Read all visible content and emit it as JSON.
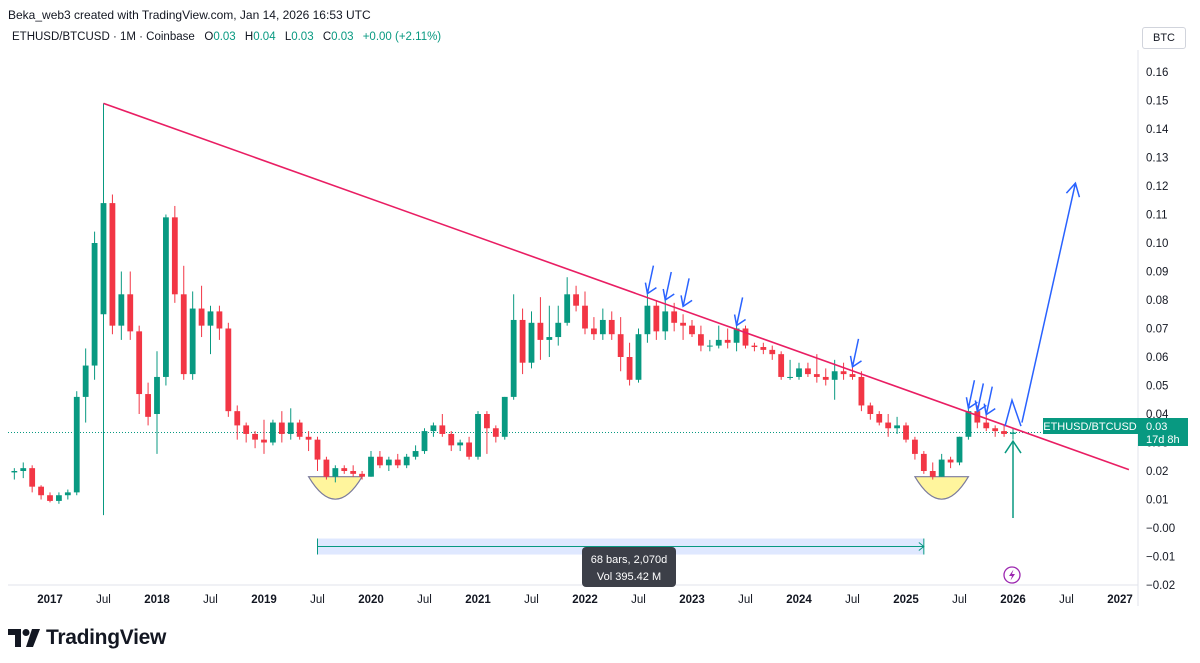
{
  "header": {
    "attribution": "Beka_web3 created with TradingView.com, Jan 14, 2026 16:53 UTC"
  },
  "legend": {
    "symbol": "ETHUSD/BTCUSD · 1M · Coinbase",
    "open_key": "O",
    "open": "0.03",
    "high_key": "H",
    "high": "0.04",
    "low_key": "L",
    "low": "0.03",
    "close_key": "C",
    "close": "0.03",
    "change": "+0.00 (+2.11%)"
  },
  "currency_button": "BTC",
  "footer": {
    "brand": "TradingView"
  },
  "price_label": {
    "name": "ETHUSD/BTCUSD",
    "value": "0.03",
    "countdown": "17d 8h"
  },
  "range_tooltip": {
    "bars": "68 bars, 2,070d",
    "volume": "Vol 395.42 M"
  },
  "colors": {
    "up": "#089981",
    "down": "#f23645",
    "trendline": "#e91e63",
    "arrow": "#2962ff",
    "range": "#2962ff",
    "highlight": "#fff59d"
  },
  "chart_data": {
    "type": "candlestick",
    "interval": "1M",
    "ylim": [
      -0.025,
      0.17
    ],
    "yticks": [
      "0.16",
      "0.15",
      "0.14",
      "0.13",
      "0.12",
      "0.11",
      "0.10",
      "0.09",
      "0.08",
      "0.07",
      "0.06",
      "0.05",
      "0.04",
      "0.03",
      "0.02",
      "0.01",
      "−0.00",
      "−0.01",
      "−0.02"
    ],
    "xticks": [
      {
        "label": "2017",
        "year": true,
        "t": 2017.0
      },
      {
        "label": "Jul",
        "year": false,
        "t": 2017.5
      },
      {
        "label": "2018",
        "year": true,
        "t": 2018.0
      },
      {
        "label": "Jul",
        "year": false,
        "t": 2018.5
      },
      {
        "label": "2019",
        "year": true,
        "t": 2019.0
      },
      {
        "label": "Jul",
        "year": false,
        "t": 2019.5
      },
      {
        "label": "2020",
        "year": true,
        "t": 2020.0
      },
      {
        "label": "Jul",
        "year": false,
        "t": 2020.5
      },
      {
        "label": "2021",
        "year": true,
        "t": 2021.0
      },
      {
        "label": "Jul",
        "year": false,
        "t": 2021.5
      },
      {
        "label": "2022",
        "year": true,
        "t": 2022.0
      },
      {
        "label": "Jul",
        "year": false,
        "t": 2022.5
      },
      {
        "label": "2023",
        "year": true,
        "t": 2023.0
      },
      {
        "label": "Jul",
        "year": false,
        "t": 2023.5
      },
      {
        "label": "2024",
        "year": true,
        "t": 2024.0
      },
      {
        "label": "Jul",
        "year": false,
        "t": 2024.5
      },
      {
        "label": "2025",
        "year": true,
        "t": 2025.0
      },
      {
        "label": "Jul",
        "year": false,
        "t": 2025.5
      },
      {
        "label": "2026",
        "year": true,
        "t": 2026.0
      },
      {
        "label": "Jul",
        "year": false,
        "t": 2026.5
      },
      {
        "label": "2027",
        "year": true,
        "t": 2027.0
      }
    ],
    "candles": [
      {
        "date": "2016-09",
        "o": 0.0195,
        "h": 0.021,
        "l": 0.017,
        "c": 0.02
      },
      {
        "date": "2016-10",
        "o": 0.02,
        "h": 0.023,
        "l": 0.0175,
        "c": 0.021
      },
      {
        "date": "2016-11",
        "o": 0.021,
        "h": 0.022,
        "l": 0.0125,
        "c": 0.0145
      },
      {
        "date": "2016-12",
        "o": 0.0145,
        "h": 0.015,
        "l": 0.01,
        "c": 0.0115
      },
      {
        "date": "2017-01",
        "o": 0.0115,
        "h": 0.0125,
        "l": 0.009,
        "c": 0.0095
      },
      {
        "date": "2017-02",
        "o": 0.0095,
        "h": 0.0125,
        "l": 0.0085,
        "c": 0.0115
      },
      {
        "date": "2017-03",
        "o": 0.0115,
        "h": 0.0135,
        "l": 0.01,
        "c": 0.0125
      },
      {
        "date": "2017-04",
        "o": 0.0125,
        "h": 0.048,
        "l": 0.0115,
        "c": 0.046
      },
      {
        "date": "2017-05",
        "o": 0.046,
        "h": 0.063,
        "l": 0.037,
        "c": 0.057
      },
      {
        "date": "2017-06",
        "o": 0.057,
        "h": 0.104,
        "l": 0.052,
        "c": 0.1
      },
      {
        "date": "2017-07",
        "o": 0.075,
        "h": 0.149,
        "l": 0.0045,
        "c": 0.114
      },
      {
        "date": "2017-08",
        "o": 0.114,
        "h": 0.117,
        "l": 0.068,
        "c": 0.071
      },
      {
        "date": "2017-09",
        "o": 0.071,
        "h": 0.09,
        "l": 0.066,
        "c": 0.082
      },
      {
        "date": "2017-10",
        "o": 0.082,
        "h": 0.09,
        "l": 0.066,
        "c": 0.069
      },
      {
        "date": "2017-11",
        "o": 0.069,
        "h": 0.071,
        "l": 0.04,
        "c": 0.047
      },
      {
        "date": "2017-12",
        "o": 0.047,
        "h": 0.051,
        "l": 0.036,
        "c": 0.039
      },
      {
        "date": "2018-01",
        "o": 0.04,
        "h": 0.062,
        "l": 0.026,
        "c": 0.053
      },
      {
        "date": "2018-02",
        "o": 0.053,
        "h": 0.11,
        "l": 0.05,
        "c": 0.109
      },
      {
        "date": "2018-03",
        "o": 0.109,
        "h": 0.113,
        "l": 0.079,
        "c": 0.082
      },
      {
        "date": "2018-04",
        "o": 0.082,
        "h": 0.092,
        "l": 0.052,
        "c": 0.054
      },
      {
        "date": "2018-05",
        "o": 0.054,
        "h": 0.083,
        "l": 0.052,
        "c": 0.077
      },
      {
        "date": "2018-06",
        "o": 0.077,
        "h": 0.085,
        "l": 0.067,
        "c": 0.071
      },
      {
        "date": "2018-07",
        "o": 0.071,
        "h": 0.078,
        "l": 0.061,
        "c": 0.076
      },
      {
        "date": "2018-08",
        "o": 0.076,
        "h": 0.078,
        "l": 0.066,
        "c": 0.07
      },
      {
        "date": "2018-09",
        "o": 0.07,
        "h": 0.072,
        "l": 0.039,
        "c": 0.041
      },
      {
        "date": "2018-10",
        "o": 0.041,
        "h": 0.043,
        "l": 0.031,
        "c": 0.036
      },
      {
        "date": "2018-11",
        "o": 0.036,
        "h": 0.037,
        "l": 0.03,
        "c": 0.033
      },
      {
        "date": "2018-12",
        "o": 0.033,
        "h": 0.034,
        "l": 0.028,
        "c": 0.031
      },
      {
        "date": "2019-01",
        "o": 0.031,
        "h": 0.038,
        "l": 0.026,
        "c": 0.03
      },
      {
        "date": "2019-02",
        "o": 0.03,
        "h": 0.038,
        "l": 0.029,
        "c": 0.037
      },
      {
        "date": "2019-03",
        "o": 0.037,
        "h": 0.041,
        "l": 0.03,
        "c": 0.033
      },
      {
        "date": "2019-04",
        "o": 0.033,
        "h": 0.042,
        "l": 0.031,
        "c": 0.037
      },
      {
        "date": "2019-05",
        "o": 0.037,
        "h": 0.038,
        "l": 0.031,
        "c": 0.032
      },
      {
        "date": "2019-06",
        "o": 0.032,
        "h": 0.034,
        "l": 0.027,
        "c": 0.031
      },
      {
        "date": "2019-07",
        "o": 0.031,
        "h": 0.032,
        "l": 0.02,
        "c": 0.024
      },
      {
        "date": "2019-08",
        "o": 0.024,
        "h": 0.025,
        "l": 0.017,
        "c": 0.018
      },
      {
        "date": "2019-09",
        "o": 0.018,
        "h": 0.022,
        "l": 0.016,
        "c": 0.021
      },
      {
        "date": "2019-10",
        "o": 0.021,
        "h": 0.022,
        "l": 0.019,
        "c": 0.02
      },
      {
        "date": "2019-11",
        "o": 0.02,
        "h": 0.022,
        "l": 0.018,
        "c": 0.019
      },
      {
        "date": "2019-12",
        "o": 0.019,
        "h": 0.02,
        "l": 0.017,
        "c": 0.018
      },
      {
        "date": "2020-01",
        "o": 0.018,
        "h": 0.027,
        "l": 0.018,
        "c": 0.025
      },
      {
        "date": "2020-02",
        "o": 0.025,
        "h": 0.027,
        "l": 0.021,
        "c": 0.022
      },
      {
        "date": "2020-03",
        "o": 0.022,
        "h": 0.025,
        "l": 0.02,
        "c": 0.024
      },
      {
        "date": "2020-04",
        "o": 0.024,
        "h": 0.026,
        "l": 0.021,
        "c": 0.022
      },
      {
        "date": "2020-05",
        "o": 0.022,
        "h": 0.026,
        "l": 0.021,
        "c": 0.025
      },
      {
        "date": "2020-06",
        "o": 0.025,
        "h": 0.029,
        "l": 0.024,
        "c": 0.027
      },
      {
        "date": "2020-07",
        "o": 0.027,
        "h": 0.035,
        "l": 0.026,
        "c": 0.034
      },
      {
        "date": "2020-08",
        "o": 0.034,
        "h": 0.037,
        "l": 0.032,
        "c": 0.036
      },
      {
        "date": "2020-09",
        "o": 0.036,
        "h": 0.04,
        "l": 0.032,
        "c": 0.033
      },
      {
        "date": "2020-10",
        "o": 0.033,
        "h": 0.034,
        "l": 0.027,
        "c": 0.029
      },
      {
        "date": "2020-11",
        "o": 0.029,
        "h": 0.031,
        "l": 0.027,
        "c": 0.03
      },
      {
        "date": "2020-12",
        "o": 0.03,
        "h": 0.032,
        "l": 0.024,
        "c": 0.025
      },
      {
        "date": "2021-01",
        "o": 0.025,
        "h": 0.041,
        "l": 0.024,
        "c": 0.04
      },
      {
        "date": "2021-02",
        "o": 0.04,
        "h": 0.041,
        "l": 0.026,
        "c": 0.035
      },
      {
        "date": "2021-03",
        "o": 0.035,
        "h": 0.036,
        "l": 0.03,
        "c": 0.032
      },
      {
        "date": "2021-04",
        "o": 0.032,
        "h": 0.046,
        "l": 0.031,
        "c": 0.046
      },
      {
        "date": "2021-05",
        "o": 0.046,
        "h": 0.082,
        "l": 0.045,
        "c": 0.073
      },
      {
        "date": "2021-06",
        "o": 0.073,
        "h": 0.077,
        "l": 0.054,
        "c": 0.058
      },
      {
        "date": "2021-07",
        "o": 0.058,
        "h": 0.076,
        "l": 0.056,
        "c": 0.072
      },
      {
        "date": "2021-08",
        "o": 0.072,
        "h": 0.081,
        "l": 0.059,
        "c": 0.066
      },
      {
        "date": "2021-09",
        "o": 0.066,
        "h": 0.078,
        "l": 0.06,
        "c": 0.067
      },
      {
        "date": "2021-10",
        "o": 0.067,
        "h": 0.078,
        "l": 0.064,
        "c": 0.072
      },
      {
        "date": "2021-11",
        "o": 0.072,
        "h": 0.088,
        "l": 0.071,
        "c": 0.082
      },
      {
        "date": "2021-12",
        "o": 0.082,
        "h": 0.085,
        "l": 0.076,
        "c": 0.078
      },
      {
        "date": "2022-01",
        "o": 0.078,
        "h": 0.083,
        "l": 0.068,
        "c": 0.07
      },
      {
        "date": "2022-02",
        "o": 0.07,
        "h": 0.074,
        "l": 0.066,
        "c": 0.068
      },
      {
        "date": "2022-03",
        "o": 0.068,
        "h": 0.077,
        "l": 0.066,
        "c": 0.073
      },
      {
        "date": "2022-04",
        "o": 0.073,
        "h": 0.076,
        "l": 0.066,
        "c": 0.068
      },
      {
        "date": "2022-05",
        "o": 0.068,
        "h": 0.074,
        "l": 0.055,
        "c": 0.06
      },
      {
        "date": "2022-06",
        "o": 0.06,
        "h": 0.065,
        "l": 0.05,
        "c": 0.052
      },
      {
        "date": "2022-07",
        "o": 0.052,
        "h": 0.07,
        "l": 0.051,
        "c": 0.068
      },
      {
        "date": "2022-08",
        "o": 0.068,
        "h": 0.082,
        "l": 0.065,
        "c": 0.078
      },
      {
        "date": "2022-09",
        "o": 0.078,
        "h": 0.08,
        "l": 0.066,
        "c": 0.069
      },
      {
        "date": "2022-10",
        "o": 0.069,
        "h": 0.08,
        "l": 0.066,
        "c": 0.076
      },
      {
        "date": "2022-11",
        "o": 0.076,
        "h": 0.079,
        "l": 0.069,
        "c": 0.072
      },
      {
        "date": "2022-12",
        "o": 0.072,
        "h": 0.075,
        "l": 0.066,
        "c": 0.071
      },
      {
        "date": "2023-01",
        "o": 0.071,
        "h": 0.073,
        "l": 0.067,
        "c": 0.068
      },
      {
        "date": "2023-02",
        "o": 0.068,
        "h": 0.071,
        "l": 0.062,
        "c": 0.064
      },
      {
        "date": "2023-03",
        "o": 0.064,
        "h": 0.066,
        "l": 0.062,
        "c": 0.064
      },
      {
        "date": "2023-04",
        "o": 0.064,
        "h": 0.071,
        "l": 0.063,
        "c": 0.066
      },
      {
        "date": "2023-05",
        "o": 0.066,
        "h": 0.07,
        "l": 0.063,
        "c": 0.065
      },
      {
        "date": "2023-06",
        "o": 0.065,
        "h": 0.071,
        "l": 0.062,
        "c": 0.07
      },
      {
        "date": "2023-07",
        "o": 0.07,
        "h": 0.071,
        "l": 0.063,
        "c": 0.064
      },
      {
        "date": "2023-08",
        "o": 0.064,
        "h": 0.065,
        "l": 0.062,
        "c": 0.0635
      },
      {
        "date": "2023-09",
        "o": 0.0635,
        "h": 0.065,
        "l": 0.061,
        "c": 0.0625
      },
      {
        "date": "2023-10",
        "o": 0.0625,
        "h": 0.064,
        "l": 0.059,
        "c": 0.061
      },
      {
        "date": "2023-11",
        "o": 0.061,
        "h": 0.062,
        "l": 0.052,
        "c": 0.053
      },
      {
        "date": "2023-12",
        "o": 0.053,
        "h": 0.059,
        "l": 0.052,
        "c": 0.053
      },
      {
        "date": "2024-01",
        "o": 0.053,
        "h": 0.058,
        "l": 0.052,
        "c": 0.056
      },
      {
        "date": "2024-02",
        "o": 0.056,
        "h": 0.058,
        "l": 0.053,
        "c": 0.054
      },
      {
        "date": "2024-03",
        "o": 0.054,
        "h": 0.061,
        "l": 0.051,
        "c": 0.053
      },
      {
        "date": "2024-04",
        "o": 0.053,
        "h": 0.056,
        "l": 0.05,
        "c": 0.052
      },
      {
        "date": "2024-05",
        "o": 0.052,
        "h": 0.059,
        "l": 0.045,
        "c": 0.055
      },
      {
        "date": "2024-06",
        "o": 0.055,
        "h": 0.058,
        "l": 0.052,
        "c": 0.054
      },
      {
        "date": "2024-07",
        "o": 0.054,
        "h": 0.058,
        "l": 0.052,
        "c": 0.053
      },
      {
        "date": "2024-08",
        "o": 0.053,
        "h": 0.055,
        "l": 0.041,
        "c": 0.043
      },
      {
        "date": "2024-09",
        "o": 0.043,
        "h": 0.044,
        "l": 0.038,
        "c": 0.04
      },
      {
        "date": "2024-10",
        "o": 0.04,
        "h": 0.041,
        "l": 0.036,
        "c": 0.037
      },
      {
        "date": "2024-11",
        "o": 0.037,
        "h": 0.04,
        "l": 0.032,
        "c": 0.035
      },
      {
        "date": "2024-12",
        "o": 0.035,
        "h": 0.039,
        "l": 0.033,
        "c": 0.036
      },
      {
        "date": "2025-01",
        "o": 0.036,
        "h": 0.037,
        "l": 0.03,
        "c": 0.031
      },
      {
        "date": "2025-02",
        "o": 0.031,
        "h": 0.032,
        "l": 0.024,
        "c": 0.026
      },
      {
        "date": "2025-03",
        "o": 0.026,
        "h": 0.027,
        "l": 0.019,
        "c": 0.02
      },
      {
        "date": "2025-04",
        "o": 0.02,
        "h": 0.023,
        "l": 0.017,
        "c": 0.018
      },
      {
        "date": "2025-05",
        "o": 0.018,
        "h": 0.026,
        "l": 0.018,
        "c": 0.024
      },
      {
        "date": "2025-06",
        "o": 0.024,
        "h": 0.025,
        "l": 0.021,
        "c": 0.023
      },
      {
        "date": "2025-07",
        "o": 0.023,
        "h": 0.032,
        "l": 0.022,
        "c": 0.032
      },
      {
        "date": "2025-08",
        "o": 0.032,
        "h": 0.043,
        "l": 0.031,
        "c": 0.041
      },
      {
        "date": "2025-09",
        "o": 0.041,
        "h": 0.043,
        "l": 0.035,
        "c": 0.037
      },
      {
        "date": "2025-10",
        "o": 0.037,
        "h": 0.04,
        "l": 0.034,
        "c": 0.035
      },
      {
        "date": "2025-11",
        "o": 0.035,
        "h": 0.036,
        "l": 0.032,
        "c": 0.034
      },
      {
        "date": "2025-12",
        "o": 0.034,
        "h": 0.036,
        "l": 0.032,
        "c": 0.033
      },
      {
        "date": "2026-01",
        "o": 0.033,
        "h": 0.035,
        "l": 0.031,
        "c": 0.0335
      }
    ],
    "last_price": 0.0335,
    "trendline": [
      {
        "date": "2017-07",
        "y": 0.149
      },
      {
        "date": "2027-02",
        "y": 0.0205
      }
    ],
    "projection_arrow": [
      {
        "date": "2026-02",
        "y": 0.037
      },
      {
        "date": "2026-08",
        "y": 0.121
      }
    ],
    "up_arrow": [
      {
        "date": "2026-01",
        "y": 0.0035
      },
      {
        "date": "2026-01",
        "y": 0.0305
      }
    ],
    "rejection_arrows": [
      "2022-08",
      "2022-10",
      "2022-12",
      "2023-06",
      "2024-07",
      "2025-08",
      "2025-09",
      "2025-10"
    ],
    "breakout_arrow": "2026-01",
    "bowls": [
      {
        "start": "2019-06",
        "end": "2019-12",
        "top": 0.018
      },
      {
        "start": "2025-02",
        "end": "2025-08",
        "top": 0.018
      }
    ],
    "date_range": {
      "start": "2019-07",
      "end": "2025-03",
      "y": -0.0065
    }
  }
}
